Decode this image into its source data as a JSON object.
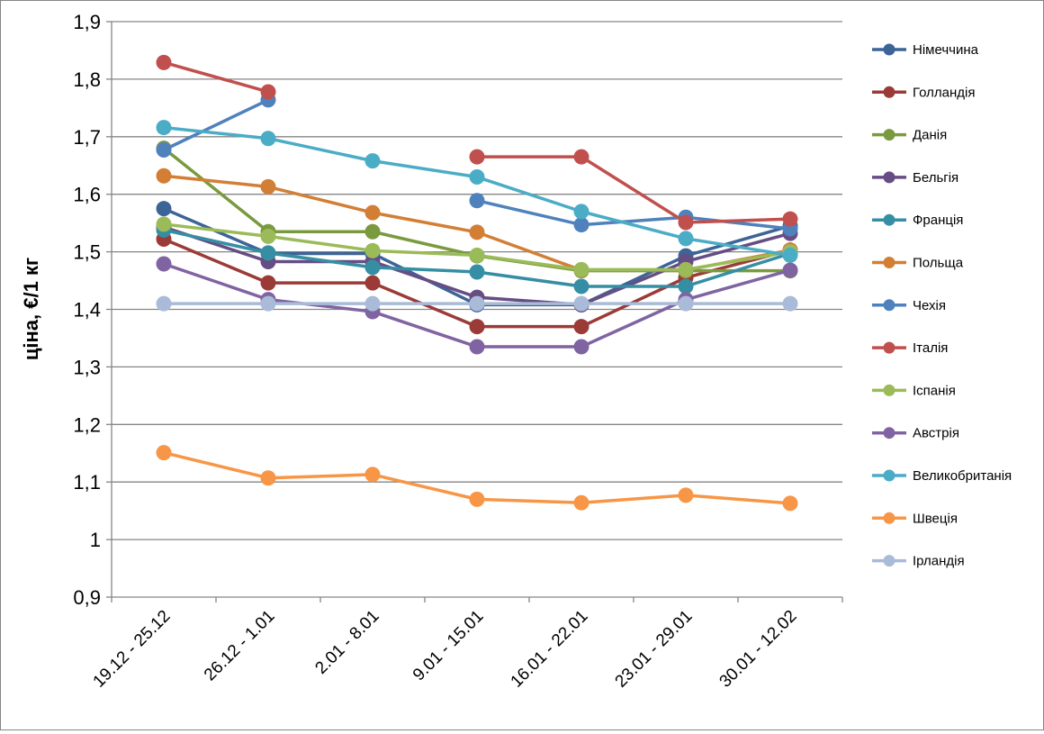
{
  "chart_data": {
    "type": "line",
    "title": "",
    "xlabel": "",
    "ylabel": "ціна, €/1 кг",
    "ylim": [
      0.9,
      1.9
    ],
    "yticks": [
      "0,9",
      "1",
      "1,1",
      "1,2",
      "1,3",
      "1,4",
      "1,5",
      "1,6",
      "1,7",
      "1,8",
      "1,9"
    ],
    "grid": true,
    "legend_position": "right",
    "categories": [
      "19.12 - 25.12",
      "26.12 - 1.01",
      "2.01 - 8.01",
      "9.01 - 15.01",
      "16.01 - 22.01",
      "23.01 - 29.01",
      "30.01 - 12.02"
    ],
    "series": [
      {
        "name": "Німеччина",
        "color": "#3C6496",
        "values": [
          1.575,
          1.497,
          1.497,
          1.408,
          1.408,
          1.493,
          1.545
        ]
      },
      {
        "name": "Голландія",
        "color": "#9B3B38",
        "values": [
          1.522,
          1.446,
          1.446,
          1.37,
          1.37,
          1.455,
          1.503
        ]
      },
      {
        "name": "Данія",
        "color": "#7A9A3F",
        "values": [
          1.68,
          1.535,
          1.535,
          1.493,
          1.467,
          1.467,
          1.467
        ]
      },
      {
        "name": "Бельгія",
        "color": "#664D84",
        "values": [
          1.543,
          1.483,
          1.483,
          1.421,
          1.408,
          1.483,
          1.532
        ]
      },
      {
        "name": "Франція",
        "color": "#358EA3",
        "values": [
          1.538,
          1.498,
          1.473,
          1.465,
          1.44,
          1.44,
          1.497
        ]
      },
      {
        "name": "Польща",
        "color": "#D27F35",
        "values": [
          1.632,
          1.613,
          1.568,
          1.534,
          1.468,
          1.468,
          1.503
        ]
      },
      {
        "name": "Чехія",
        "color": "#4F81BD",
        "values": [
          1.677,
          1.764,
          null,
          1.589,
          1.547,
          1.56,
          1.54
        ]
      },
      {
        "name": "Італія",
        "color": "#C0504D",
        "values": [
          1.829,
          1.778,
          null,
          1.665,
          1.665,
          1.551,
          1.557
        ]
      },
      {
        "name": "Іспанія",
        "color": "#9BBB59",
        "values": [
          1.548,
          1.527,
          1.502,
          1.494,
          1.469,
          1.469,
          1.5
        ]
      },
      {
        "name": "Австрія",
        "color": "#8064A2",
        "values": [
          1.479,
          1.417,
          1.396,
          1.335,
          1.335,
          1.417,
          1.468
        ]
      },
      {
        "name": "Великобританія",
        "color": "#4BACC6",
        "values": [
          1.716,
          1.697,
          1.658,
          1.63,
          1.57,
          1.523,
          1.494
        ]
      },
      {
        "name": "Швеція",
        "color": "#F79646",
        "values": [
          1.151,
          1.107,
          1.113,
          1.07,
          1.064,
          1.077,
          1.063
        ]
      },
      {
        "name": "Ірландія",
        "color": "#A9BBD8",
        "values": [
          1.41,
          1.41,
          1.41,
          1.41,
          1.41,
          1.41,
          1.41
        ]
      }
    ]
  }
}
